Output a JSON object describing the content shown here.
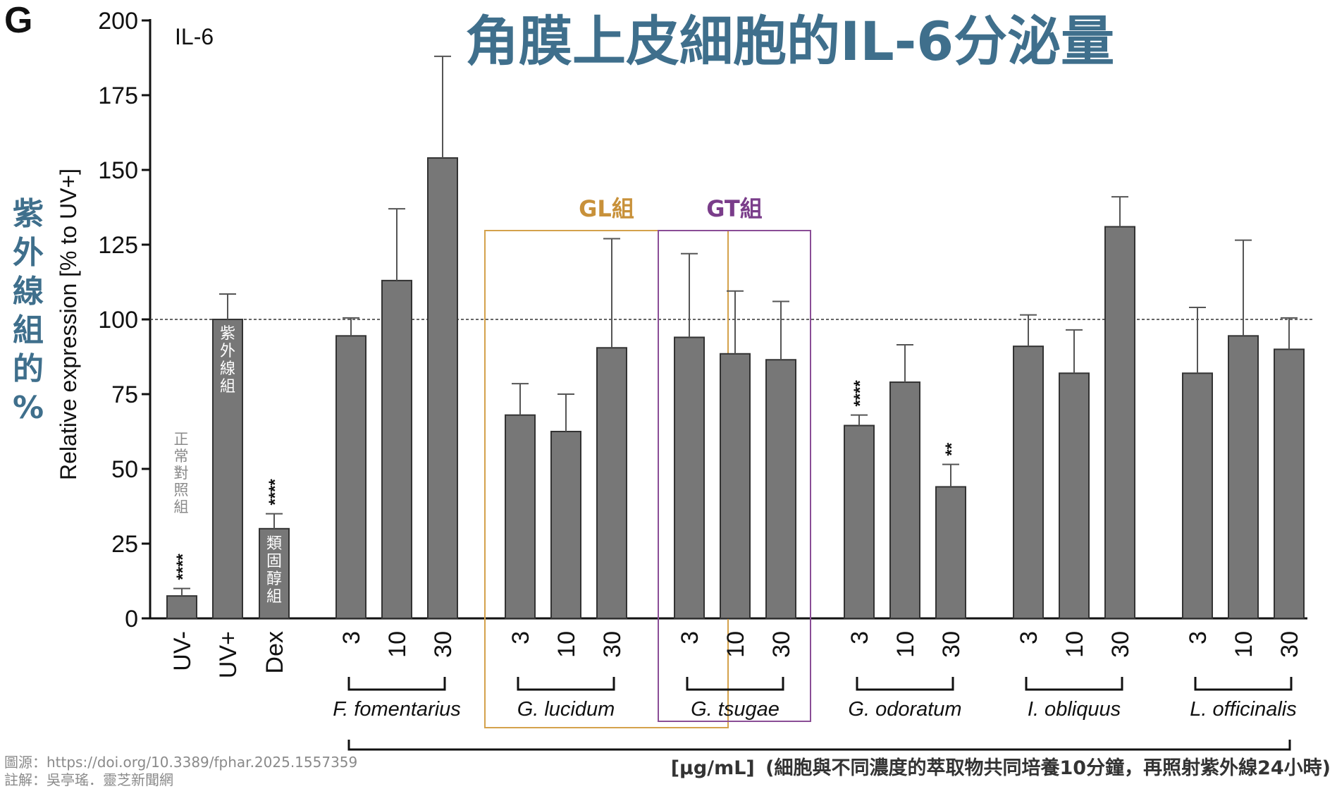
{
  "panel_label": "G",
  "chart_data": {
    "type": "bar",
    "title": "角膜上皮細胞的IL-6分泌量",
    "series_label": "IL-6",
    "ylabel": "Relative expression [% to UV+]",
    "ylabel_side": "紫外線組的%",
    "ylim": [
      0,
      200
    ],
    "yticks": [
      0,
      25,
      50,
      75,
      100,
      125,
      150,
      175,
      200
    ],
    "reference_line": 100,
    "controls": [
      {
        "label": "UV-",
        "value": 7.5,
        "error": 2.5,
        "sig": "****",
        "note": "正常對照組"
      },
      {
        "label": "UV+",
        "value": 100,
        "error": 8.5,
        "sig": "",
        "note": "紫外線組"
      },
      {
        "label": "Dex",
        "value": 30,
        "error": 5,
        "sig": "****",
        "note": "類固醇組"
      }
    ],
    "doses": [
      "3",
      "10",
      "30"
    ],
    "groups": [
      {
        "name": "F. fomentarius",
        "values": [
          94.5,
          113,
          154
        ],
        "errors": [
          6,
          24,
          34
        ],
        "sig": [
          "",
          "",
          ""
        ]
      },
      {
        "name": "G. lucidum",
        "values": [
          68,
          62.5,
          90.5
        ],
        "errors": [
          10.5,
          12.5,
          36.5
        ],
        "sig": [
          "",
          "",
          ""
        ]
      },
      {
        "name": "G. tsugae",
        "values": [
          94,
          88.5,
          86.5
        ],
        "errors": [
          28,
          21,
          19.5
        ],
        "sig": [
          "",
          "",
          ""
        ]
      },
      {
        "name": "G. odoratum",
        "values": [
          64.5,
          79,
          44
        ],
        "errors": [
          3.5,
          12.5,
          7.5
        ],
        "sig": [
          "****",
          "",
          "**"
        ]
      },
      {
        "name": "I. obliquus",
        "values": [
          91,
          82,
          131
        ],
        "errors": [
          10.5,
          14.5,
          10
        ],
        "sig": [
          "",
          "",
          ""
        ]
      },
      {
        "name": "L. officinalis",
        "values": [
          82,
          94.5,
          90
        ],
        "errors": [
          22,
          32,
          10.5
        ],
        "sig": [
          "",
          "",
          ""
        ]
      }
    ],
    "highlight_boxes": [
      {
        "label": "GL組",
        "color": "#d4a24c",
        "text_color": "#c8913a"
      },
      {
        "label": "GT組",
        "color": "#8a4d96",
        "text_color": "#7a3d8a"
      }
    ],
    "units_label": "[μg/mL]",
    "units_note": "(細胞與不同濃度的萃取物共同培養10分鐘，再照射紫外線24小時)",
    "bar_color": "#777777"
  },
  "footer": {
    "source": "圖源：https://doi.org/10.3389/fphar.2025.1557359",
    "note": "註解：吳亭瑤．靈芝新聞網"
  }
}
